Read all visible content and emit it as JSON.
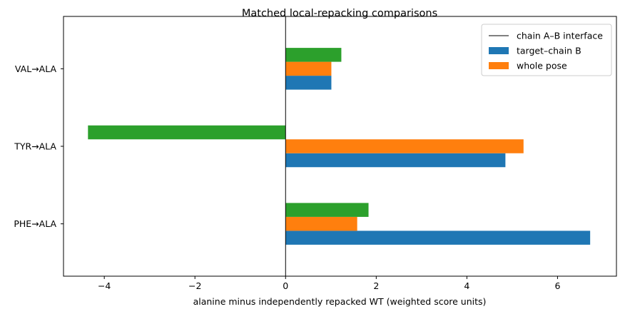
{
  "chart_data": {
    "type": "bar",
    "orientation": "horizontal",
    "title": "Matched local-repacking comparisons",
    "xlabel": "alanine minus independently repacked WT (weighted score units)",
    "ylabel": "",
    "categories": [
      "PHE→ALA",
      "TYR→ALA",
      "VAL→ALA"
    ],
    "xlim": [
      -4.9,
      7.3
    ],
    "xticks": [
      -4,
      -2,
      0,
      2,
      4,
      6
    ],
    "reference_line": {
      "x": 0,
      "label": "chain A–B interface",
      "color": "#000000"
    },
    "series": [
      {
        "name": "target–chain B",
        "color": "#1f77b4",
        "values": [
          6.72,
          4.85,
          1.01
        ]
      },
      {
        "name": "whole pose",
        "color": "#ff7f0e",
        "values": [
          1.58,
          5.25,
          1.01
        ]
      },
      {
        "name": "",
        "color": "#2ca02c",
        "values": [
          1.83,
          -4.36,
          1.23
        ]
      }
    ],
    "legend": {
      "position": "top-right"
    },
    "grid": false
  }
}
